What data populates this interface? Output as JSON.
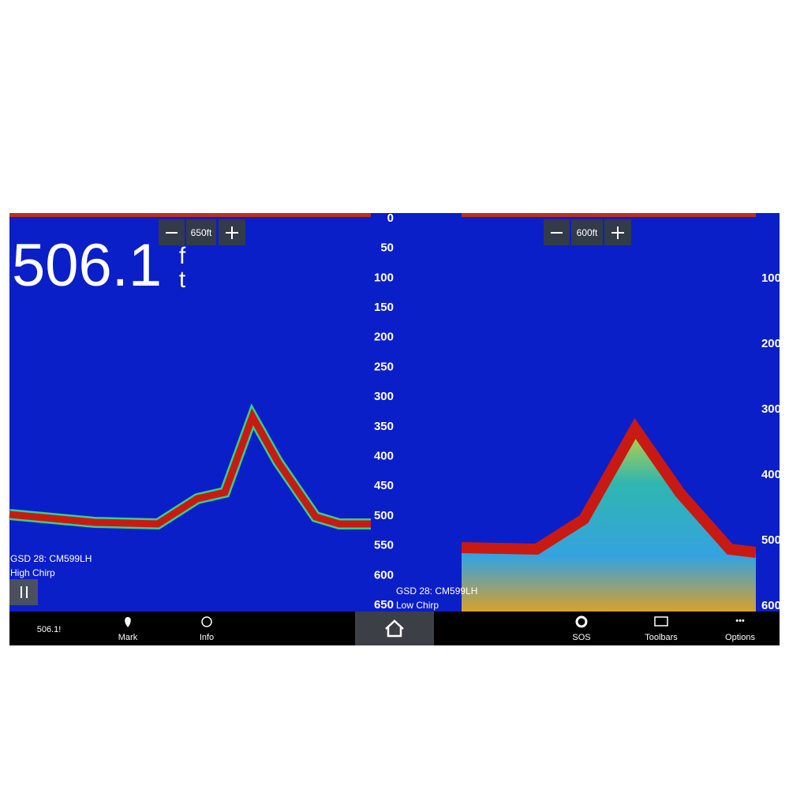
{
  "left_panel": {
    "range": "650ft",
    "depth": "506.1",
    "depth_unit_1": "f",
    "depth_unit_2": "t",
    "scale": [
      0,
      50,
      100,
      150,
      200,
      250,
      300,
      350,
      400,
      450,
      500,
      550,
      600,
      650
    ],
    "source": "GSD 28: CM599LH",
    "mode": "High Chirp"
  },
  "right_panel": {
    "range": "600ft",
    "scale": [
      100,
      200,
      300,
      400,
      500,
      600
    ],
    "source": "GSD 28: CM599LH",
    "mode": "Low Chirp"
  },
  "toolbar": {
    "depth": "506.1!",
    "mark": "Mark",
    "info": "Info",
    "sos": "SOS",
    "toolbars": "Toolbars",
    "options": "Options"
  }
}
